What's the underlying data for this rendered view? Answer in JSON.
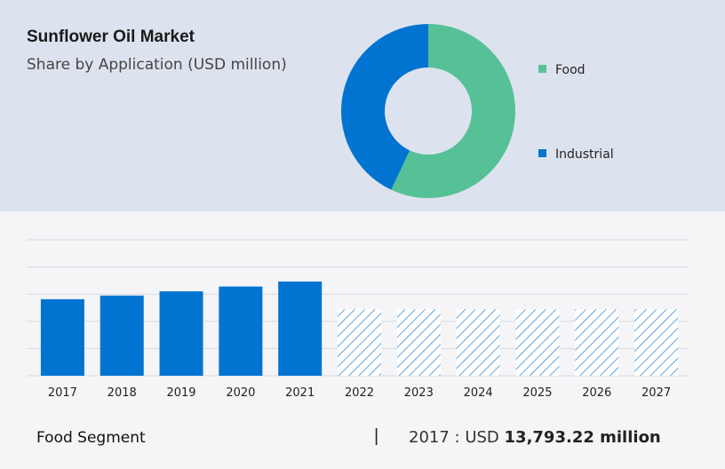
{
  "header": {
    "title": "Sunflower Oil Market",
    "subtitle": "Share by Application (USD million)"
  },
  "colors": {
    "food": "#56c196",
    "industrial": "#0074d0",
    "bar": "#0074d0",
    "hatch": "#1f7fd1"
  },
  "chart_data": [
    {
      "type": "pie",
      "donut": true,
      "labels": [
        "Food",
        "Industrial"
      ],
      "values": [
        57,
        43
      ],
      "legend_position": "right"
    },
    {
      "type": "bar",
      "categories": [
        "2017",
        "2018",
        "2019",
        "2020",
        "2021",
        "2022",
        "2023",
        "2024",
        "2025",
        "2026",
        "2027"
      ],
      "values": [
        13793.22,
        14450,
        15220,
        16080,
        16990,
        null,
        null,
        null,
        null,
        null,
        null
      ],
      "forecast_categories": [
        "2022",
        "2023",
        "2024",
        "2025",
        "2026",
        "2027"
      ],
      "ylim": [
        0,
        24500
      ],
      "grid": true
    }
  ],
  "footer": {
    "segment": "Food Segment",
    "separator": "|",
    "year_prefix": "2017 : USD",
    "value": "13,793.22 million"
  }
}
